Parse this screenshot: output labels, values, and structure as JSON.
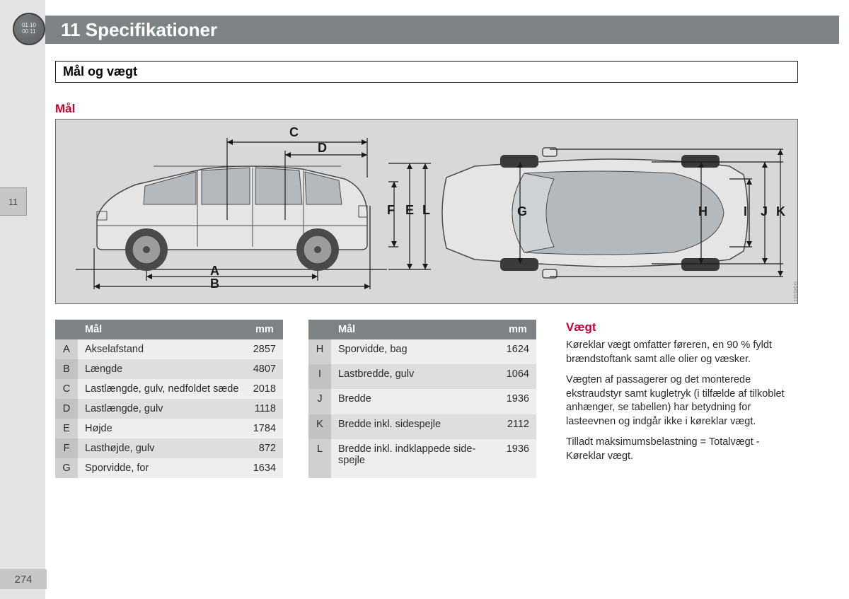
{
  "chapter": {
    "number": "11",
    "title": "Specifikationer",
    "icon_text_top": "01 10",
    "icon_text_bottom": "00 11",
    "side_tab": "11",
    "page_number": "274"
  },
  "section_title": "Mål og vægt",
  "subheading_mal": "Mål",
  "diagram": {
    "credit": "G045161",
    "labels": {
      "A": "A",
      "B": "B",
      "C": "C",
      "D": "D",
      "E": "E",
      "F": "F",
      "G": "G",
      "H": "H",
      "I": "I",
      "J": "J",
      "K": "K",
      "L": "L"
    },
    "background_color": "#d7d8d9",
    "border_color": "#6a6a6a",
    "car_body_fill": "#e5e5e6",
    "car_stroke": "#4a4a4a",
    "glass_fill": "#b4b9be",
    "wheel_fill": "#4a4a4a",
    "rim_fill": "#9a9c9e"
  },
  "table1": {
    "header_label": "Mål",
    "header_unit": "mm",
    "rows": [
      {
        "letter": "A",
        "label": "Akselafstand",
        "value": "2857"
      },
      {
        "letter": "B",
        "label": "Længde",
        "value": "4807"
      },
      {
        "letter": "C",
        "label": "Lastlængde, gulv, nedfoldet sæde",
        "value": "2018"
      },
      {
        "letter": "D",
        "label": "Lastlængde, gulv",
        "value": "1118"
      },
      {
        "letter": "E",
        "label": "Højde",
        "value": "1784"
      },
      {
        "letter": "F",
        "label": "Lasthøjde, gulv",
        "value": "872"
      },
      {
        "letter": "G",
        "label": "Sporvidde, for",
        "value": "1634"
      }
    ]
  },
  "table2": {
    "header_label": "Mål",
    "header_unit": "mm",
    "rows": [
      {
        "letter": "H",
        "label": "Sporvidde, bag",
        "value": "1624"
      },
      {
        "letter": "I",
        "label": "Lastbredde, gulv",
        "value": "1064"
      },
      {
        "letter": "J",
        "label": "Bredde",
        "value": "1936"
      },
      {
        "letter": "K",
        "label": "Bredde inkl. sidespejle",
        "value": "2112"
      },
      {
        "letter": "L",
        "label": "Bredde inkl. indklappede side-spejle",
        "value": "1936"
      }
    ]
  },
  "weight": {
    "heading": "Vægt",
    "p1": "Køreklar vægt omfatter føreren, en 90 % fyldt brændstoftank samt alle olier og væsker.",
    "p2": "Vægten af passagerer og det monterede ekstraudstyr samt kugletryk (i tilfælde af tilkoblet anhænger, se tabellen) har betydning for lasteevnen og indgår ikke i køreklar vægt.",
    "p3": "Tilladt maksimumsbelastning = Totalvægt - Køreklar vægt."
  },
  "colors": {
    "header_bar": "#7f8285",
    "accent": "#c2002f",
    "page_bg": "#e3e3e4",
    "tab_bg": "#c5c6c7",
    "row_odd": "#eeeeef",
    "row_even": "#dededf"
  },
  "typography": {
    "title_fontsize": 26,
    "section_fontsize": 18,
    "subheading_fontsize": 17,
    "body_fontsize": 14.5,
    "dim_label_fontsize": 18
  }
}
